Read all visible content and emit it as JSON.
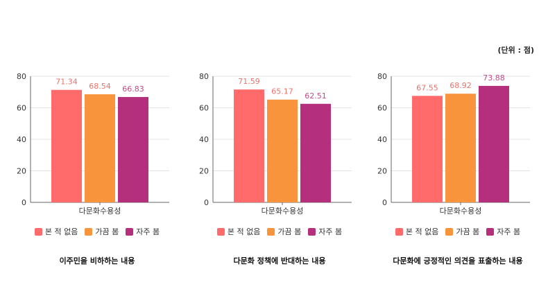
{
  "unit_label": "(단위 : 점)",
  "colors": {
    "series": [
      "#ff6b6b",
      "#f7943c",
      "#b5307c"
    ],
    "value_label": [
      "#e8736a",
      "#e8736a",
      "#c04a8c"
    ],
    "axis": "#666666",
    "grid": "#e3e3e3"
  },
  "chart_data": [
    {
      "type": "bar",
      "categories": [
        "다문화수용성"
      ],
      "series": [
        {
          "name": "본 적 없음",
          "values": [
            71.34
          ]
        },
        {
          "name": "가끔 봄",
          "values": [
            68.54
          ]
        },
        {
          "name": "자주 봄",
          "values": [
            66.83
          ]
        }
      ],
      "value_labels": [
        "71.34",
        "68.54",
        "66.83"
      ],
      "ylim": [
        0,
        80
      ],
      "yticks": [
        0,
        20,
        40,
        60,
        80
      ],
      "caption": "이주민을 비하하는 내용"
    },
    {
      "type": "bar",
      "categories": [
        "다문화수용성"
      ],
      "series": [
        {
          "name": "본 적 없음",
          "values": [
            71.59
          ]
        },
        {
          "name": "가끔 봄",
          "values": [
            65.17
          ]
        },
        {
          "name": "자주 봄",
          "values": [
            62.51
          ]
        }
      ],
      "value_labels": [
        "71.59",
        "65.17",
        "62.51"
      ],
      "ylim": [
        0,
        80
      ],
      "yticks": [
        0,
        20,
        40,
        60,
        80
      ],
      "caption": "다문화 정책에 반대하는 내용"
    },
    {
      "type": "bar",
      "categories": [
        "다문화수용성"
      ],
      "series": [
        {
          "name": "본 적 없음",
          "values": [
            67.55
          ]
        },
        {
          "name": "가끔 봄",
          "values": [
            68.92
          ]
        },
        {
          "name": "자주 봄",
          "values": [
            73.88
          ]
        }
      ],
      "value_labels": [
        "67.55",
        "68.92",
        "73.88"
      ],
      "ylim": [
        0,
        80
      ],
      "yticks": [
        0,
        20,
        40,
        60,
        80
      ],
      "caption": "다문화에 긍정적인 의견을 표출하는 내용"
    }
  ]
}
